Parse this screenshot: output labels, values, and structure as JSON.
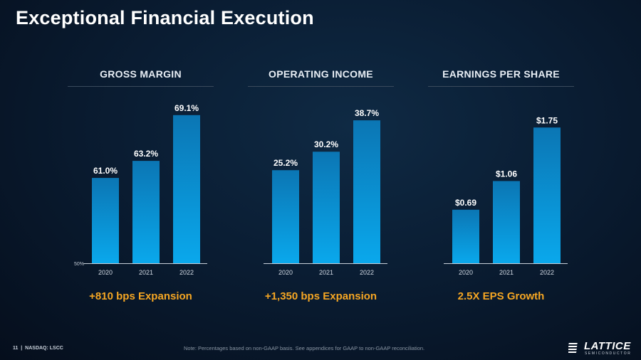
{
  "title": "Exceptional Financial Execution",
  "colors": {
    "bar_top": "#0b76b4",
    "bar_bottom": "#0aa8ec",
    "accent": "#f5a623"
  },
  "chart_data": [
    {
      "type": "bar",
      "title": "GROSS MARGIN",
      "categories": [
        "2020",
        "2021",
        "2022"
      ],
      "values": [
        61.0,
        63.2,
        69.1
      ],
      "value_labels": [
        "61.0%",
        "63.2%",
        "69.1%"
      ],
      "ylim": [
        50,
        70
      ],
      "axis_note": "50%",
      "caption": "+810 bps Expansion"
    },
    {
      "type": "bar",
      "title": "OPERATING INCOME",
      "categories": [
        "2020",
        "2021",
        "2022"
      ],
      "values": [
        25.2,
        30.2,
        38.7
      ],
      "value_labels": [
        "25.2%",
        "30.2%",
        "38.7%"
      ],
      "ylim": [
        0,
        42
      ],
      "caption": "+1,350 bps Expansion"
    },
    {
      "type": "bar",
      "title": "EARNINGS PER SHARE",
      "categories": [
        "2020",
        "2021",
        "2022"
      ],
      "values": [
        0.69,
        1.06,
        1.75
      ],
      "value_labels": [
        "$0.69",
        "$1.06",
        "$1.75"
      ],
      "ylim": [
        0,
        2.0
      ],
      "caption": "2.5X EPS Growth"
    }
  ],
  "footer": {
    "page": "11",
    "ticker": "NASDAQ: LSCC",
    "note": "Note: Percentages based on non-GAAP basis. See appendices for GAAP to non-GAAP reconciliation."
  },
  "logo": {
    "word": "LATTICE",
    "sub": "SEMICONDUCTOR"
  }
}
